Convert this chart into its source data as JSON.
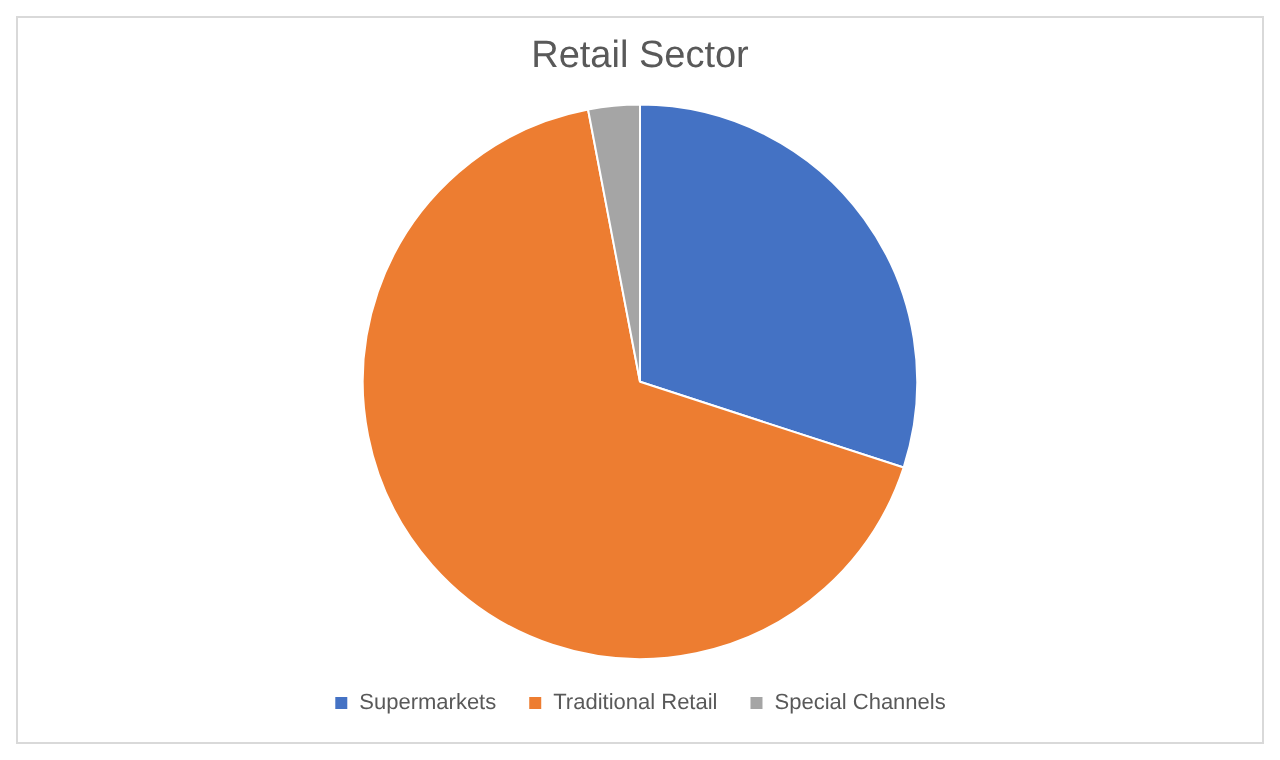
{
  "chart_data": {
    "type": "pie",
    "title": "Retail Sector",
    "categories": [
      "Supermarkets",
      "Traditional Retail",
      "Special Channels"
    ],
    "values": [
      30,
      67,
      3
    ],
    "colors": [
      "#4472c4",
      "#ed7d31",
      "#a5a5a5"
    ],
    "legend": "bottom"
  }
}
